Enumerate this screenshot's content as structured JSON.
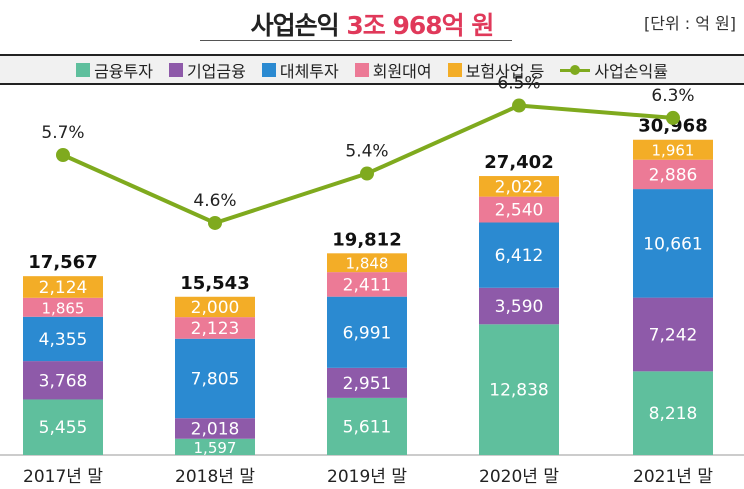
{
  "header": {
    "title_prefix": "사업손익 ",
    "title_highlight": "3조 968억 원",
    "unit": "[단위 : 억 원]"
  },
  "legend": [
    {
      "label": "금융투자",
      "color": "#5fbf9d"
    },
    {
      "label": "기업금융",
      "color": "#8e5aa9"
    },
    {
      "label": "대체투자",
      "color": "#2b8ad1"
    },
    {
      "label": "회원대여",
      "color": "#ec7a96"
    },
    {
      "label": "보험사업 등",
      "color": "#f3ad27"
    },
    {
      "label": "사업손익률",
      "color": "#7faa1e"
    }
  ],
  "chart_data": {
    "type": "bar",
    "stacked": true,
    "categories": [
      "2017년 말",
      "2018년 말",
      "2019년 말",
      "2020년 말",
      "2021년 말"
    ],
    "series": [
      {
        "name": "금융투자",
        "color": "#5fbf9d",
        "values": [
          5455,
          1597,
          5611,
          12838,
          8218
        ],
        "labels": [
          "5,455",
          "1,597",
          "5,611",
          "12,838",
          "8,218"
        ]
      },
      {
        "name": "기업금융",
        "color": "#8e5aa9",
        "values": [
          3768,
          2018,
          2951,
          3590,
          7242
        ],
        "labels": [
          "3,768",
          "2,018",
          "2,951",
          "3,590",
          "7,242"
        ]
      },
      {
        "name": "대체투자",
        "color": "#2b8ad1",
        "values": [
          4355,
          7805,
          6991,
          6412,
          10661
        ],
        "labels": [
          "4,355",
          "7,805",
          "6,991",
          "6,412",
          "10,661"
        ]
      },
      {
        "name": "회원대여",
        "color": "#ec7a96",
        "values": [
          1865,
          2123,
          2411,
          2540,
          2886
        ],
        "labels": [
          "1,865",
          "2,123",
          "2,411",
          "2,540",
          "2,886"
        ]
      },
      {
        "name": "보험사업 등",
        "color": "#f3ad27",
        "values": [
          2124,
          2000,
          1848,
          2022,
          1961
        ],
        "labels": [
          "2,124",
          "2,000",
          "1,848",
          "2,022",
          "1,961"
        ]
      }
    ],
    "totals": [
      17567,
      15543,
      19812,
      27402,
      30968
    ],
    "total_labels": [
      "17,567",
      "15,543",
      "19,812",
      "27,402",
      "30,968"
    ],
    "line": {
      "name": "사업손익률",
      "color": "#7faa1e",
      "values": [
        5.7,
        4.6,
        5.4,
        6.5,
        6.3
      ],
      "labels": [
        "5.7%",
        "4.6%",
        "5.4%",
        "6.5%",
        "6.3%"
      ]
    }
  }
}
